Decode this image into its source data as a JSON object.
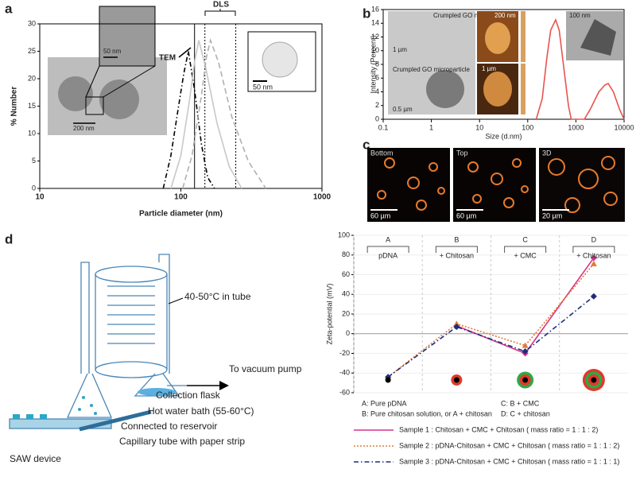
{
  "chart_data": [
    {
      "type": "line",
      "xscale": "log",
      "xlabel": "Particle diameter (nm)",
      "ylabel": "% Number",
      "xlim": [
        10,
        1000
      ],
      "xticks": [
        10,
        100,
        1000
      ],
      "ylim": [
        0,
        30
      ],
      "yticks": [
        0,
        5,
        10,
        15,
        20,
        25,
        30
      ],
      "series": [
        {
          "color": "#000000",
          "dash": "6,3,1.5,3",
          "x": [
            75,
            85,
            95,
            105,
            113,
            125,
            140,
            155,
            173
          ],
          "values": [
            0,
            6,
            14,
            21,
            25,
            18,
            8,
            2,
            0
          ]
        },
        {
          "color": "#c8c8c8",
          "dash": "",
          "x": [
            85,
            100,
            115,
            125,
            134,
            150,
            180,
            220,
            270
          ],
          "values": [
            0,
            6,
            16,
            23,
            27,
            22,
            12,
            4,
            0
          ]
        },
        {
          "color": "#b0b0b0",
          "dash": "7,4",
          "x": [
            103,
            120,
            140,
            152,
            162,
            185,
            230,
            300,
            400
          ],
          "values": [
            0,
            6,
            17,
            24,
            27,
            23,
            13,
            5,
            0
          ]
        }
      ],
      "vlines": [
        {
          "value": 125,
          "dash": ""
        },
        {
          "value": 148,
          "dash": "2,2"
        },
        {
          "value": 245,
          "dash": "2,2"
        }
      ],
      "annotations": [
        "TEM",
        "DLS"
      ],
      "inset_scales": [
        "50 nm",
        "200 nm",
        "50 nm"
      ]
    },
    {
      "type": "line",
      "xscale": "log",
      "xlabel": "Size (d.nm)",
      "ylabel": "Intensity (Percent)",
      "xlim": [
        0.1,
        10000
      ],
      "xticks": [
        0.1,
        1,
        10,
        100,
        1000,
        10000
      ],
      "ylim": [
        0,
        16
      ],
      "yticks": [
        0,
        2,
        4,
        6,
        8,
        10,
        12,
        14,
        16
      ],
      "series": [
        {
          "color": "#e8544e",
          "dash": "",
          "x": [
            150,
            200,
            250,
            300,
            380,
            450,
            550,
            700,
            800,
            1500,
            2000,
            3000,
            4000,
            4700,
            6000,
            8000,
            10000
          ],
          "values": [
            0,
            3,
            9,
            13,
            14.5,
            13,
            8,
            2,
            0,
            0,
            1.5,
            4,
            5,
            5.2,
            4,
            1.5,
            0
          ]
        }
      ],
      "insets": [
        "Crumpled GO nanoparticle",
        "1 µm",
        "Crumpled GO microparticle",
        "0.5 µm",
        "200 nm",
        "1 µm",
        "100 nm"
      ]
    },
    {
      "type": "line",
      "ylabel": "Zeta-potential (mV)",
      "categories": [
        "A",
        "B",
        "C",
        "D"
      ],
      "stage_labels": [
        "pDNA",
        "+ Chitosan",
        "+ CMC",
        "+ Chitosan"
      ],
      "ylim": [
        -60,
        100
      ],
      "yticks": [
        -60,
        -40,
        -20,
        0,
        20,
        40,
        60,
        80,
        100
      ],
      "grid": true,
      "series": [
        {
          "name": "Sample 1 :  Chitosan + CMC + Chitosan ( mass ratio = 1 : 1 : 2)",
          "color": "#d6338a",
          "dash": "",
          "marker": "diamond",
          "values": [
            null,
            8,
            -20,
            77
          ]
        },
        {
          "name": "Sample 2 :  pDNA-Chitosan + CMC + Chitosan ( mass ratio = 1 : 1 : 2)",
          "color": "#e07b39",
          "dash": "2,2",
          "marker": "triangle",
          "values": [
            -44,
            10,
            -12,
            71
          ]
        },
        {
          "name": "Sample 3 :  pDNA-Chitosan + CMC + Chitosan ( mass ratio = 1 : 1 : 1)",
          "color": "#1f2d7a",
          "dash": "6,3,1.5,3",
          "marker": "diamond",
          "values": [
            -44,
            7,
            -18,
            38
          ]
        }
      ],
      "notes": [
        "A: Pure pDNA",
        "C: B + CMC",
        "B: Pure chitosan solution, or  A + chitosan",
        "D: C + chitosan"
      ]
    }
  ],
  "panel_labels": [
    "a",
    "b",
    "c",
    "d"
  ],
  "panel_c": {
    "views": [
      "Bottom",
      "Top",
      "3D"
    ],
    "scale_bars": [
      "60 µm",
      "60 µm",
      "20 µm"
    ]
  },
  "diagram": {
    "labels": [
      "40-50°C in tube",
      "To vacuum pump",
      "Collection flask",
      "Hot water bath (55-60°C)",
      "Connected to reservoir",
      "Capillary tube with paper strip",
      "SAW device"
    ]
  }
}
